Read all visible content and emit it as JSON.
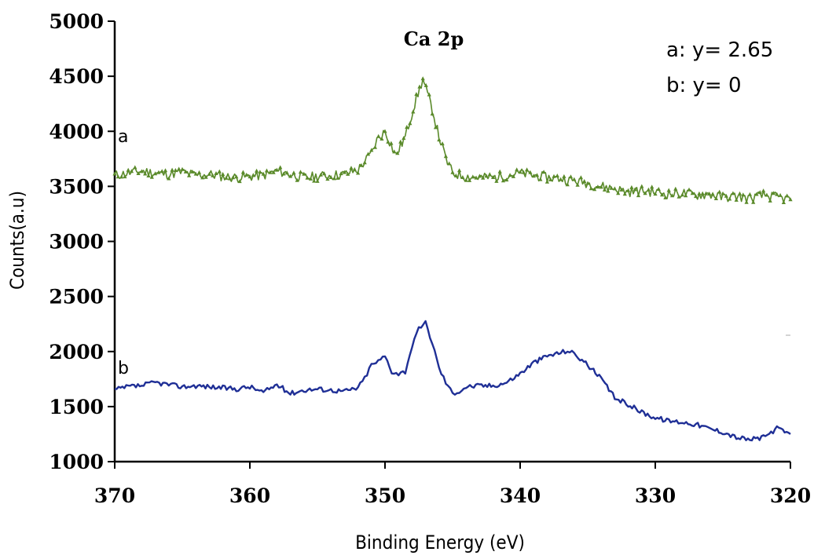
{
  "chart_data": {
    "type": "line",
    "title": "Ca 2p",
    "xlabel": "Binding Energy (eV)",
    "ylabel": "Counts(a.u)",
    "xlim": [
      370,
      320
    ],
    "ylim": [
      1000,
      5000
    ],
    "x_reversed": true,
    "x_ticks": [
      "370",
      "360",
      "350",
      "340",
      "330",
      "320"
    ],
    "y_ticks": [
      "1000",
      "1500",
      "2000",
      "2500",
      "3000",
      "3500",
      "4000",
      "4500",
      "5000"
    ],
    "grid": false,
    "legend_position": "top-right",
    "legend": [
      "a: y= 2.65",
      "b: y= 0"
    ],
    "series": [
      {
        "label": "a",
        "color": "#5a8a2a",
        "marker": "triangle",
        "x": [
          370,
          369,
          368,
          367,
          366,
          365,
          364,
          363,
          362,
          361,
          360,
          359,
          358,
          357,
          356,
          355,
          354,
          353,
          352,
          351,
          350.6,
          350,
          349.2,
          348.5,
          347.8,
          347.2,
          346.5,
          346,
          345.5,
          345,
          344,
          343,
          342,
          341,
          340,
          339,
          338,
          337,
          336,
          335,
          334,
          333,
          332,
          331,
          330,
          329,
          328,
          327,
          326,
          325,
          324,
          323,
          322,
          321,
          320
        ],
        "y": [
          3600,
          3620,
          3640,
          3620,
          3610,
          3630,
          3600,
          3610,
          3590,
          3580,
          3590,
          3600,
          3640,
          3610,
          3580,
          3590,
          3600,
          3610,
          3650,
          3800,
          3920,
          4000,
          3780,
          3950,
          4250,
          4470,
          4200,
          3950,
          3750,
          3620,
          3590,
          3580,
          3580,
          3600,
          3620,
          3600,
          3580,
          3570,
          3550,
          3530,
          3500,
          3480,
          3450,
          3460,
          3450,
          3430,
          3440,
          3420,
          3430,
          3400,
          3410,
          3390,
          3420,
          3400,
          3380
        ]
      },
      {
        "label": "b",
        "color": "#1f2f96",
        "x": [
          370,
          369,
          368,
          367,
          366,
          365,
          364,
          363,
          362,
          361,
          360,
          359,
          358,
          357,
          356,
          355,
          354,
          353,
          352,
          351.5,
          351,
          350.5,
          350,
          349.5,
          349,
          348.5,
          348,
          347.5,
          347,
          346.5,
          346,
          345.5,
          345,
          344.5,
          344,
          343,
          342,
          341,
          340,
          339,
          338,
          337,
          336.5,
          336,
          335,
          334,
          333,
          332,
          331,
          330,
          329,
          328,
          327,
          326,
          325,
          324,
          323,
          322,
          321,
          320
        ],
        "y": [
          1650,
          1680,
          1690,
          1720,
          1700,
          1680,
          1690,
          1680,
          1670,
          1660,
          1680,
          1630,
          1700,
          1620,
          1650,
          1660,
          1650,
          1640,
          1670,
          1760,
          1880,
          1910,
          1960,
          1820,
          1800,
          1820,
          2050,
          2200,
          2260,
          2080,
          1850,
          1720,
          1620,
          1640,
          1680,
          1690,
          1690,
          1720,
          1800,
          1900,
          1960,
          1990,
          2010,
          1980,
          1880,
          1750,
          1580,
          1520,
          1450,
          1400,
          1370,
          1360,
          1340,
          1300,
          1270,
          1220,
          1200,
          1220,
          1300,
          1250
        ]
      }
    ]
  }
}
